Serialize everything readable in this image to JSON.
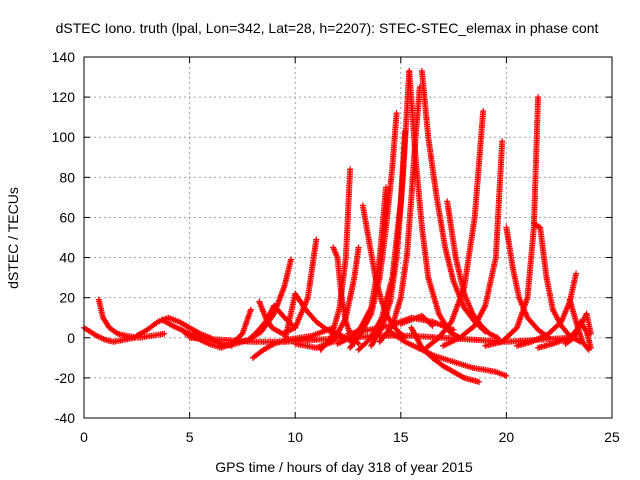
{
  "chart_data": {
    "type": "scatter",
    "title": "dSTEC Iono. truth (lpal, Lon=342, Lat=28, h=2207): STEC-STEC_elemax in phase cont",
    "xlabel": "GPS time / hours of day 318 of year 2015",
    "ylabel": "dSTEC  / TECUs",
    "xlim": [
      0,
      25
    ],
    "ylim": [
      -40,
      140
    ],
    "xticks": [
      0,
      5,
      10,
      15,
      20,
      25
    ],
    "yticks": [
      -40,
      -20,
      0,
      20,
      40,
      60,
      80,
      100,
      120,
      140
    ],
    "grid": true,
    "marker": "+",
    "color": "#ff0000",
    "series": [
      {
        "x": [
          0.0,
          0.3,
          0.6,
          1.0,
          1.4,
          1.9,
          2.4
        ],
        "y": [
          5,
          3,
          1,
          -1,
          -2,
          -1,
          0
        ]
      },
      {
        "x": [
          0.7,
          0.9,
          1.2,
          1.6,
          2.0,
          2.6,
          3.2,
          3.8
        ],
        "y": [
          19,
          10,
          5,
          2,
          1,
          0,
          1,
          2
        ]
      },
      {
        "x": [
          2.5,
          3.0,
          3.5,
          4.0,
          4.5,
          5.0,
          5.5,
          6.0
        ],
        "y": [
          1,
          4,
          8,
          10,
          8,
          5,
          2,
          0
        ]
      },
      {
        "x": [
          3.7,
          4.2,
          4.8,
          5.4,
          6.0,
          6.5,
          7.0
        ],
        "y": [
          9,
          6,
          3,
          1,
          -1,
          -3,
          -4
        ]
      },
      {
        "x": [
          4.8,
          5.3,
          5.9,
          6.5,
          7.0,
          7.5,
          7.9
        ],
        "y": [
          2,
          0,
          -3,
          -5,
          -3,
          2,
          14
        ]
      },
      {
        "x": [
          6.5,
          7.2,
          7.8,
          8.4,
          9.0,
          9.5,
          9.8
        ],
        "y": [
          -4,
          -3,
          -1,
          3,
          12,
          26,
          39
        ]
      },
      {
        "x": [
          7.8,
          8.2,
          8.6,
          9.0,
          9.5,
          10.0
        ],
        "y": [
          -1,
          3,
          8,
          16,
          10,
          5
        ]
      },
      {
        "x": [
          8.3,
          8.6,
          8.9,
          9.4,
          10.0,
          10.6,
          11.0
        ],
        "y": [
          18,
          10,
          5,
          2,
          5,
          20,
          49
        ]
      },
      {
        "x": [
          8.0,
          8.5,
          9.0,
          9.6,
          10.2,
          10.8,
          11.3,
          11.8
        ],
        "y": [
          -10,
          -6,
          -3,
          -1,
          0,
          1,
          3,
          5
        ]
      },
      {
        "x": [
          9.5,
          10.0,
          10.5,
          11.0,
          11.5,
          12.0,
          12.4,
          12.8
        ],
        "y": [
          -2,
          22,
          14,
          8,
          4,
          2,
          0,
          -3
        ]
      },
      {
        "x": [
          10.0,
          11.0,
          11.8,
          12.4,
          12.8,
          13.0
        ],
        "y": [
          -3,
          -5,
          -2,
          10,
          30,
          45
        ]
      },
      {
        "x": [
          11.8,
          12.0,
          12.2,
          12.4,
          12.6,
          13.0
        ],
        "y": [
          45,
          40,
          20,
          8,
          2,
          -3
        ]
      },
      {
        "x": [
          11.2,
          11.7,
          12.1,
          12.4,
          12.6
        ],
        "y": [
          -6,
          0,
          15,
          40,
          84
        ]
      },
      {
        "x": [
          12.0,
          12.6,
          13.1,
          13.6,
          14.0,
          14.3
        ],
        "y": [
          -3,
          0,
          5,
          15,
          40,
          75
        ]
      },
      {
        "x": [
          13.2,
          13.5,
          13.8,
          14.1,
          14.4,
          14.8,
          15.2
        ],
        "y": [
          66,
          48,
          30,
          18,
          10,
          4,
          0
        ]
      },
      {
        "x": [
          12.6,
          13.1,
          13.6,
          14.0,
          14.3,
          14.6,
          14.8
        ],
        "y": [
          -5,
          2,
          12,
          30,
          55,
          85,
          112
        ]
      },
      {
        "x": [
          13.0,
          13.6,
          14.1,
          14.6,
          15.0,
          15.2
        ],
        "y": [
          -6,
          0,
          10,
          30,
          68,
          103
        ]
      },
      {
        "x": [
          13.6,
          14.1,
          14.5,
          14.8,
          15.1,
          15.4
        ],
        "y": [
          -4,
          5,
          18,
          40,
          80,
          133
        ]
      },
      {
        "x": [
          14.0,
          14.6,
          15.0,
          15.3,
          15.5,
          15.7,
          15.9
        ],
        "y": [
          -2,
          6,
          20,
          42,
          70,
          100,
          125
        ]
      },
      {
        "x": [
          15.4,
          15.7,
          16.0,
          16.3,
          16.8,
          17.3,
          17.8
        ],
        "y": [
          133,
          90,
          55,
          30,
          12,
          3,
          0
        ]
      },
      {
        "x": [
          16.0,
          16.3,
          16.7,
          17.1,
          17.5,
          18.0,
          18.5,
          19.0
        ],
        "y": [
          133,
          100,
          70,
          45,
          28,
          15,
          8,
          3
        ]
      },
      {
        "x": [
          15.5,
          16.0,
          16.5,
          17.0,
          17.5,
          18.0,
          18.7
        ],
        "y": [
          5,
          -5,
          -10,
          -14,
          -17,
          -20,
          -22
        ]
      },
      {
        "x": [
          14.5,
          15.2,
          16.0,
          16.6,
          17.2,
          17.8,
          18.4,
          19.0,
          19.5,
          20.0
        ],
        "y": [
          3,
          -2,
          -6,
          -9,
          -11,
          -13,
          -15,
          -16,
          -17,
          -19
        ]
      },
      {
        "x": [
          17.2,
          17.6,
          18.0,
          18.4,
          18.8,
          19.2,
          19.6
        ],
        "y": [
          68,
          40,
          22,
          12,
          6,
          2,
          0
        ]
      },
      {
        "x": [
          16.2,
          16.8,
          17.4,
          18.0,
          18.5,
          18.9
        ],
        "y": [
          -5,
          0,
          8,
          25,
          60,
          113
        ]
      },
      {
        "x": [
          17.0,
          17.8,
          18.5,
          19.0,
          19.5,
          19.8
        ],
        "y": [
          -4,
          0,
          6,
          16,
          40,
          98
        ]
      },
      {
        "x": [
          20.0,
          20.3,
          20.6,
          21.0,
          21.5,
          22.0
        ],
        "y": [
          55,
          35,
          20,
          10,
          4,
          0
        ]
      },
      {
        "x": [
          19.0,
          19.8,
          20.5,
          21.0,
          21.3,
          21.5
        ],
        "y": [
          -4,
          -2,
          5,
          20,
          55,
          120
        ]
      },
      {
        "x": [
          21.3,
          21.6,
          21.9,
          22.2,
          22.6,
          23.0,
          23.5
        ],
        "y": [
          57,
          55,
          30,
          14,
          6,
          1,
          -2
        ]
      },
      {
        "x": [
          20.5,
          21.2,
          22.0,
          22.6,
          23.0,
          23.3
        ],
        "y": [
          -4,
          -2,
          2,
          8,
          18,
          32
        ]
      },
      {
        "x": [
          21.5,
          22.2,
          23.0,
          23.5,
          23.8,
          24.0
        ],
        "y": [
          -5,
          -3,
          0,
          6,
          12,
          2
        ]
      },
      {
        "x": [
          23.0,
          23.3,
          23.6,
          23.9
        ],
        "y": [
          19,
          8,
          -2,
          -6
        ]
      },
      {
        "x": [
          22.8,
          23.2,
          23.5,
          23.8,
          24.0
        ],
        "y": [
          -3,
          0,
          8,
          3,
          -5
        ]
      },
      {
        "x": [
          12.5,
          13.5,
          14.5,
          15.5,
          16.5,
          17.5
        ],
        "y": [
          2,
          4,
          6,
          10,
          8,
          4
        ]
      },
      {
        "x": [
          15.0,
          15.5,
          16.0,
          16.5
        ],
        "y": [
          7,
          9,
          11,
          6
        ]
      },
      {
        "x": [
          5.0,
          6.5,
          8.0,
          9.5,
          11.0,
          12.5,
          14.0,
          15.5,
          17.0,
          18.5,
          20.0,
          21.5,
          23.0
        ],
        "y": [
          0,
          -1,
          -2,
          -2,
          -1,
          0,
          1,
          1,
          0,
          -1,
          -2,
          -1,
          0
        ]
      }
    ]
  }
}
